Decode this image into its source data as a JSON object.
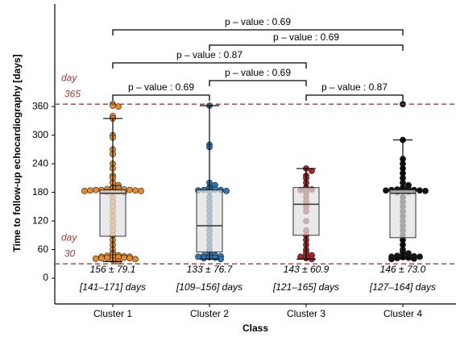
{
  "chart_data": {
    "type": "box",
    "y_label": "Time to follow-up echocardiography [days]",
    "x_label": "Class",
    "ylim": [
      -54,
      575
    ],
    "yticks": [
      0,
      60,
      120,
      180,
      240,
      300,
      360
    ],
    "reference_lines": [
      {
        "value": 365,
        "label_top": "day",
        "label_bottom": "365",
        "color": "#9b3b3b"
      },
      {
        "value": 30,
        "label_top": "day",
        "label_bottom": "30",
        "color": "#9b3b3b"
      }
    ],
    "groups": [
      {
        "name": "Cluster 1",
        "color": "#e8892b",
        "box": {
          "min": 35,
          "q1": 88,
          "median": 178,
          "q3": 185,
          "max": 335
        },
        "points": [
          365,
          362,
          360,
          340,
          335,
          300,
          295,
          270,
          260,
          240,
          230,
          215,
          210,
          200,
          195,
          190,
          190,
          188,
          188,
          187,
          186,
          185,
          185,
          185,
          184,
          184,
          183,
          183,
          182,
          182,
          181,
          180,
          170,
          160,
          150,
          140,
          130,
          120,
          110,
          100,
          90,
          80,
          70,
          60,
          52,
          50,
          48,
          47,
          46,
          45,
          45,
          44,
          44,
          43,
          43,
          42,
          42,
          41,
          40,
          38,
          35
        ],
        "mean_label": "156 ± 79.1",
        "ci_label": "[141–171] days"
      },
      {
        "name": "Cluster 2",
        "color": "#2a78b8",
        "box": {
          "min": 40,
          "q1": 55,
          "median": 110,
          "q3": 185,
          "max": 362
        },
        "points": [
          362,
          280,
          275,
          200,
          195,
          190,
          188,
          186,
          185,
          185,
          184,
          183,
          182,
          170,
          160,
          150,
          140,
          130,
          120,
          110,
          100,
          90,
          80,
          70,
          60,
          55,
          50,
          48,
          47,
          46,
          45,
          44,
          43,
          42,
          40
        ],
        "mean_label": "133 ± 76.7",
        "ci_label": "[109–156] days"
      },
      {
        "name": "Cluster 3",
        "color": "#a8262a",
        "box": {
          "min": 40,
          "q1": 90,
          "median": 155,
          "q3": 190,
          "max": 230
        },
        "points": [
          230,
          225,
          215,
          210,
          200,
          190,
          188,
          186,
          185,
          180,
          170,
          160,
          150,
          140,
          120,
          100,
          90,
          80,
          70,
          60,
          55,
          50,
          48,
          45,
          42,
          40
        ],
        "mean_label": "143 ± 60.9",
        "ci_label": "[121–165] days"
      },
      {
        "name": "Cluster 4",
        "color": "#111111",
        "box": {
          "min": 40,
          "q1": 85,
          "median": 178,
          "q3": 185,
          "max": 290
        },
        "points": [
          365,
          290,
          250,
          240,
          230,
          220,
          210,
          200,
          195,
          190,
          188,
          187,
          186,
          185,
          185,
          184,
          184,
          183,
          182,
          181,
          180,
          170,
          160,
          150,
          140,
          130,
          120,
          110,
          100,
          90,
          80,
          70,
          60,
          55,
          52,
          50,
          48,
          47,
          46,
          45,
          45,
          44,
          43,
          42,
          41,
          40
        ],
        "mean_label": "146 ± 73.0",
        "ci_label": "[127–164] days"
      }
    ],
    "comparisons": [
      {
        "groups": [
          "Cluster 1",
          "Cluster 4"
        ],
        "label": "p – value : 0.69"
      },
      {
        "groups": [
          "Cluster 2",
          "Cluster 4"
        ],
        "label": "p – value : 0.69"
      },
      {
        "groups": [
          "Cluster 1",
          "Cluster 3"
        ],
        "label": "p – value : 0.87"
      },
      {
        "groups": [
          "Cluster 2",
          "Cluster 3"
        ],
        "label": "p – value : 0.69"
      },
      {
        "groups": [
          "Cluster 1",
          "Cluster 2"
        ],
        "label": "p – value : 0.69"
      },
      {
        "groups": [
          "Cluster 3",
          "Cluster 4"
        ],
        "label": "p – value : 0.87"
      }
    ]
  }
}
